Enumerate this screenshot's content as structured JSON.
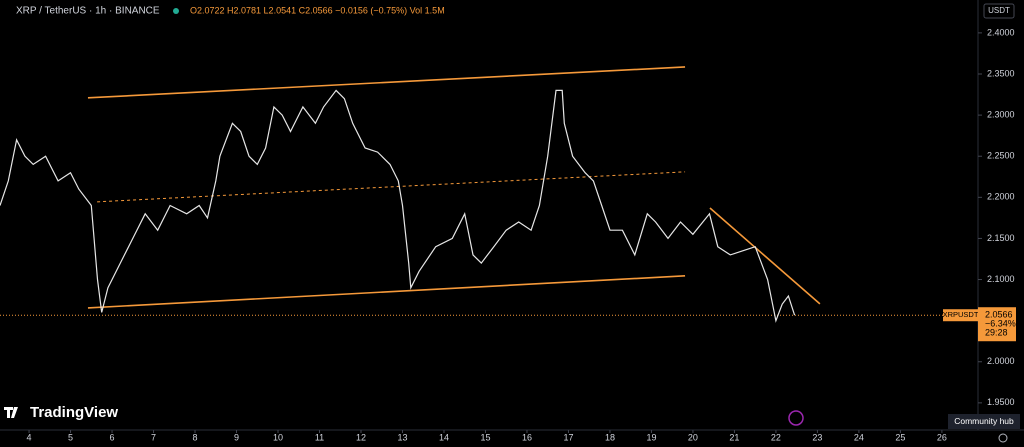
{
  "chart_data": {
    "type": "line",
    "title": "XRP / TetherUS · 1h · BINANCE",
    "ohlc": "O2.0722 H2.0781 L2.0541 C2.0566 −0.0156 (−0.75%) Vol 1.5M",
    "currency": "USDT",
    "brand": "TradingView",
    "community": "Community hub",
    "color": "#e6e6e6",
    "line_color": "#f5993a",
    "x": [
      3.3,
      3.5,
      3.7,
      3.9,
      4.1,
      4.4,
      4.7,
      5.0,
      5.2,
      5.5,
      5.65,
      5.75,
      5.9,
      6.2,
      6.5,
      6.8,
      7.1,
      7.4,
      7.8,
      8.1,
      8.3,
      8.5,
      8.6,
      8.9,
      9.1,
      9.3,
      9.5,
      9.7,
      9.9,
      10.1,
      10.3,
      10.6,
      10.9,
      11.1,
      11.4,
      11.6,
      11.8,
      12.1,
      12.4,
      12.7,
      12.9,
      13.0,
      13.15,
      13.2,
      13.4,
      13.8,
      14.2,
      14.5,
      14.7,
      14.9,
      15.2,
      15.5,
      15.8,
      16.1,
      16.3,
      16.5,
      16.7,
      16.85,
      16.9,
      17.1,
      17.4,
      17.6,
      17.8,
      18.0,
      18.3,
      18.6,
      18.9,
      19.1,
      19.4,
      19.7,
      20.0,
      20.4,
      20.6,
      20.9,
      21.2,
      21.5,
      21.8,
      22.0,
      22.15,
      22.3,
      22.45
    ],
    "values": [
      2.19,
      2.22,
      2.27,
      2.25,
      2.24,
      2.25,
      2.22,
      2.23,
      2.21,
      2.19,
      2.1,
      2.06,
      2.09,
      2.12,
      2.15,
      2.18,
      2.16,
      2.19,
      2.18,
      2.19,
      2.175,
      2.22,
      2.25,
      2.29,
      2.28,
      2.25,
      2.24,
      2.26,
      2.31,
      2.3,
      2.28,
      2.31,
      2.29,
      2.31,
      2.33,
      2.32,
      2.29,
      2.26,
      2.255,
      2.24,
      2.22,
      2.19,
      2.12,
      2.09,
      2.11,
      2.14,
      2.15,
      2.18,
      2.13,
      2.12,
      2.14,
      2.16,
      2.17,
      2.16,
      2.19,
      2.25,
      2.33,
      2.33,
      2.29,
      2.25,
      2.23,
      2.22,
      2.19,
      2.16,
      2.16,
      2.13,
      2.18,
      2.17,
      2.15,
      2.17,
      2.155,
      2.18,
      2.14,
      2.13,
      2.135,
      2.14,
      2.1,
      2.05,
      2.07,
      2.08,
      2.0566
    ],
    "drawings": [
      {
        "x": [
          5.42,
          19.81
        ],
        "y": [
          2.321,
          2.3586
        ],
        "style": "solid"
      },
      {
        "x": [
          5.42,
          19.81
        ],
        "y": [
          2.0655,
          2.1045
        ],
        "style": "solid"
      },
      {
        "x": [
          5.64,
          19.81
        ],
        "y": [
          2.1945,
          2.231
        ],
        "style": "dashed"
      },
      {
        "x": [
          20.41,
          23.06
        ],
        "y": [
          2.187,
          2.0704
        ],
        "style": "solid"
      }
    ],
    "price_label": {
      "symbol": "XRPUSDT",
      "value": 2.0566,
      "change": "−6.34%",
      "countdown": "29:28"
    },
    "xlim": [
      3.3,
      26.87
    ],
    "xticks": [
      4,
      5,
      6,
      7,
      8,
      9,
      10,
      11,
      12,
      13,
      14,
      15,
      16,
      17,
      18,
      19,
      20,
      21,
      22,
      23,
      24,
      25,
      26
    ],
    "ylim": [
      1.917,
      2.44
    ],
    "yticks": [
      {
        "value": 1.95,
        "label": "1.9500"
      },
      {
        "value": 2.0,
        "label": "2.0000"
      },
      {
        "value": 2.05,
        "label": "2.0500"
      },
      {
        "value": 2.1,
        "label": "2.1000"
      },
      {
        "value": 2.15,
        "label": "2.1500"
      },
      {
        "value": 2.2,
        "label": "2.2000"
      },
      {
        "value": 2.25,
        "label": "2.2500"
      },
      {
        "value": 2.3,
        "label": "2.3000"
      },
      {
        "value": 2.35,
        "label": "2.3500"
      },
      {
        "value": 2.4,
        "label": "2.4000"
      }
    ]
  }
}
